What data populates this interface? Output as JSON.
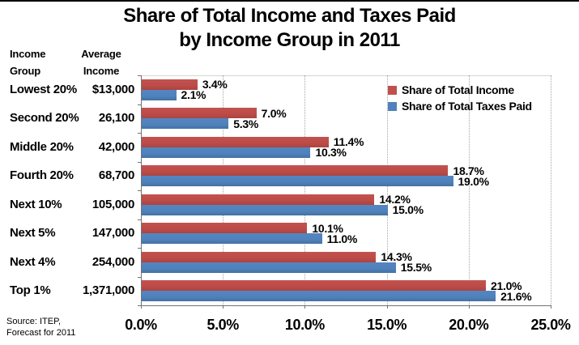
{
  "title": {
    "line1": "Share of Total Income and Taxes Paid",
    "line2": "by Income Group in 2011"
  },
  "columns": {
    "group_header_line1": "Income",
    "group_header_line2": "Group",
    "income_header_line1": "Average",
    "income_header_line2": "Income"
  },
  "source": {
    "line1": "Source:  ITEP,",
    "line2": "Forecast for 2011"
  },
  "colors": {
    "income_series": "#C0504D",
    "taxes_series": "#4F81BD",
    "gridline": "#A6A6A6",
    "axis": "#737373",
    "text": "#000000",
    "background": "#FFFFFF"
  },
  "chart_data": {
    "type": "bar",
    "orientation": "horizontal",
    "title": "Share of Total Income and Taxes Paid by Income Group in 2011",
    "categories": [
      "Lowest 20%",
      "Second 20%",
      "Middle 20%",
      "Fourth 20%",
      "Next 10%",
      "Next 5%",
      "Next 4%",
      "Top 1%"
    ],
    "average_income": [
      "$13,000",
      "26,100",
      "42,000",
      "68,700",
      "105,000",
      "147,000",
      "254,000",
      "1,371,000"
    ],
    "series": [
      {
        "name": "Share of Total Income",
        "color": "#C0504D",
        "values": [
          3.4,
          7.0,
          11.4,
          18.7,
          14.2,
          10.1,
          14.3,
          21.0
        ],
        "labels": [
          "3.4%",
          "7.0%",
          "11.4%",
          "18.7%",
          "14.2%",
          "10.1%",
          "14.3%",
          "21.0%"
        ]
      },
      {
        "name": "Share of Total Taxes Paid",
        "color": "#4F81BD",
        "values": [
          2.1,
          5.3,
          10.3,
          19.0,
          15.0,
          11.0,
          15.5,
          21.6
        ],
        "labels": [
          "2.1%",
          "5.3%",
          "10.3%",
          "19.0%",
          "15.0%",
          "11.0%",
          "15.5%",
          "21.6%"
        ]
      }
    ],
    "x_axis": {
      "min": 0,
      "max": 25,
      "tick_labels": [
        "0.0%",
        "5.0%",
        "10.0%",
        "15.0%",
        "20.0%",
        "25.0%"
      ],
      "gridlines": "dotted-vertical"
    },
    "legend_position": "top-right-inside",
    "grid": true
  }
}
